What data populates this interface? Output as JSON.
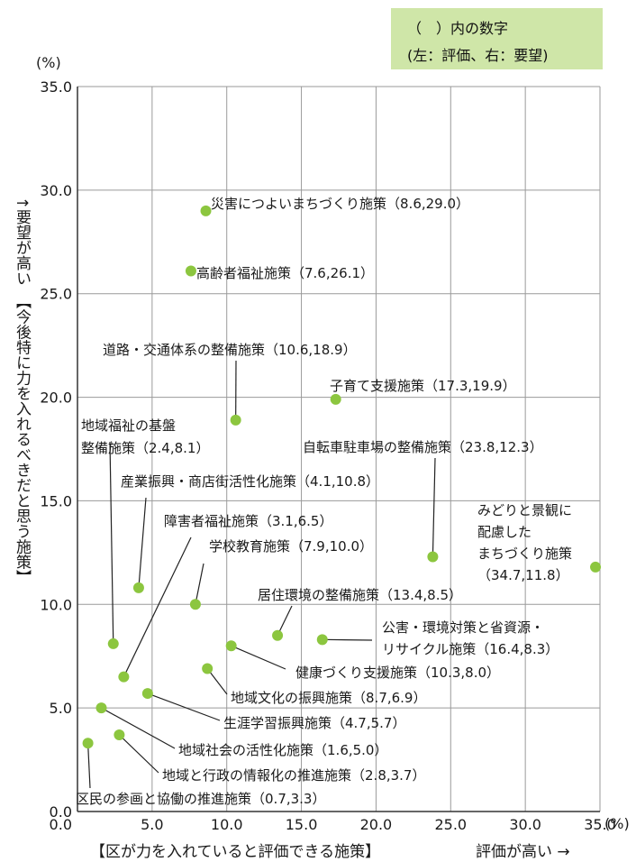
{
  "legend": {
    "line1": "（　）内の数字",
    "line2": "(左：評価、右：要望)"
  },
  "y_unit": "(%)",
  "x_unit": "(%)",
  "y_title": "↑要望が高い　【今後特に力を入れるべきだと思う施策】",
  "x_title": "【区が力を入れていると評価できる施策】",
  "x_high_label": "評価が高い →",
  "colors": {
    "point": "#8cc63f",
    "grid": "#9a9a9a",
    "leader": "#222222"
  },
  "chart_data": {
    "type": "scatter",
    "xlim": [
      0,
      35
    ],
    "ylim": [
      0,
      35
    ],
    "x_ticks": [
      "0.0",
      "5.0",
      "10.0",
      "15.0",
      "20.0",
      "25.0",
      "30.0",
      "35.0"
    ],
    "y_ticks": [
      "0.0",
      "5.0",
      "10.0",
      "15.0",
      "20.0",
      "25.0",
      "30.0",
      "35.0"
    ],
    "grid": true,
    "points": [
      {
        "x": 8.6,
        "y": 29.0,
        "label": [
          "災害につよいまちづくり施策（8.6,29.0）"
        ]
      },
      {
        "x": 7.6,
        "y": 26.1,
        "label": [
          "高齢者福祉施策（7.6,26.1）"
        ]
      },
      {
        "x": 10.6,
        "y": 18.9,
        "label": [
          "道路・交通体系の整備施策（10.6,18.9）"
        ]
      },
      {
        "x": 17.3,
        "y": 19.9,
        "label": [
          "子育て支援施策（17.3,19.9）"
        ]
      },
      {
        "x": 2.4,
        "y": 8.1,
        "label": [
          "地域福祉の基盤",
          "整備施策（2.4,8.1）"
        ]
      },
      {
        "x": 23.8,
        "y": 12.3,
        "label": [
          "自転車駐車場の整備施策（23.8,12.3）"
        ]
      },
      {
        "x": 4.1,
        "y": 10.8,
        "label": [
          "産業振興・商店街活性化施策（4.1,10.8）"
        ]
      },
      {
        "x": 34.7,
        "y": 11.8,
        "label": [
          "みどりと景観に",
          "配慮した",
          "まちづくり施策",
          "（34.7,11.8）"
        ]
      },
      {
        "x": 3.1,
        "y": 6.5,
        "label": [
          "障害者福祉施策（3.1,6.5）"
        ]
      },
      {
        "x": 7.9,
        "y": 10.0,
        "label": [
          "学校教育施策（7.9,10.0）"
        ]
      },
      {
        "x": 13.4,
        "y": 8.5,
        "label": [
          "居住環境の整備施策（13.4,8.5）"
        ]
      },
      {
        "x": 16.4,
        "y": 8.3,
        "label": [
          "公害・環境対策と省資源・",
          "リサイクル施策（16.4,8.3）"
        ]
      },
      {
        "x": 10.3,
        "y": 8.0,
        "label": [
          "健康づくり支援施策（10.3,8.0）"
        ]
      },
      {
        "x": 8.7,
        "y": 6.9,
        "label": [
          "地域文化の振興施策（8.7,6.9）"
        ]
      },
      {
        "x": 4.7,
        "y": 5.7,
        "label": [
          "生涯学習振興施策（4.7,5.7）"
        ]
      },
      {
        "x": 1.6,
        "y": 5.0,
        "label": [
          "地域社会の活性化施策（1.6,5.0）"
        ]
      },
      {
        "x": 2.8,
        "y": 3.7,
        "label": [
          "地域と行政の情報化の推進施策（2.8,3.7）"
        ]
      },
      {
        "x": 0.7,
        "y": 3.3,
        "label": [
          "区民の参画と協働の推進施策（0.7,3.3）"
        ]
      }
    ]
  }
}
